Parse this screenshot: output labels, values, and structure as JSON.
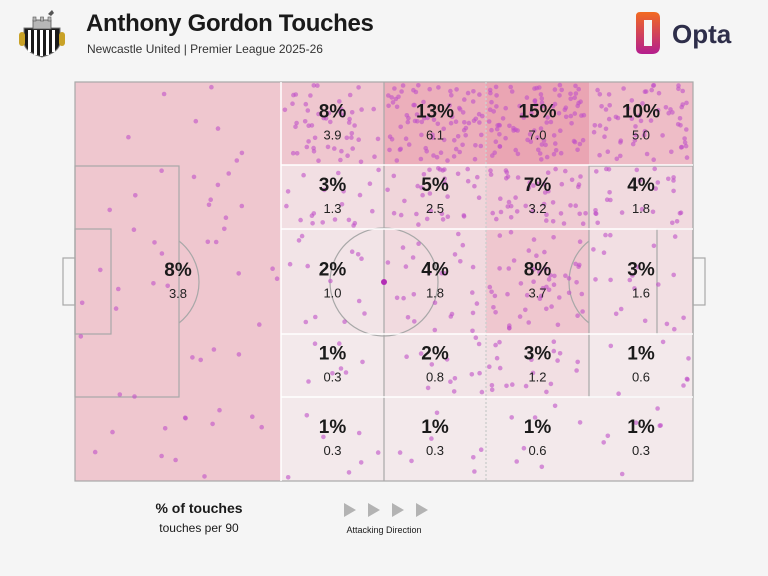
{
  "header": {
    "title": "Anthony Gordon Touches",
    "subtitle": "Newcastle United | Premier League 2025-26",
    "brand": "Opta"
  },
  "colors": {
    "zone_heat": "#e57f94",
    "touch_dot": "#c050c8",
    "pitch_line": "#a8a8a8",
    "brand_orange": "#f26a21",
    "brand_magenta": "#b41e8e",
    "brand_text": "#2e2e4a"
  },
  "legend": {
    "pct_label": "% of touches",
    "p90_label": "touches per 90",
    "direction_label": "Attacking Direction"
  },
  "chart_data": {
    "type": "heatmap",
    "title": "Anthony Gordon Touches",
    "description_units": [
      "% of touches",
      "touches per 90"
    ],
    "zones": [
      {
        "id": "own-third",
        "pct": "8%",
        "p90": "3.8",
        "share": 0.08
      },
      {
        "id": "c2-r1",
        "pct": "8%",
        "p90": "3.9",
        "share": 0.08
      },
      {
        "id": "c2-r2",
        "pct": "3%",
        "p90": "1.3",
        "share": 0.03
      },
      {
        "id": "c2-r3",
        "pct": "2%",
        "p90": "1.0",
        "share": 0.02
      },
      {
        "id": "c2-r4",
        "pct": "1%",
        "p90": "0.3",
        "share": 0.01
      },
      {
        "id": "c2-r5",
        "pct": "1%",
        "p90": "0.3",
        "share": 0.01
      },
      {
        "id": "c3-r1",
        "pct": "13%",
        "p90": "6.1",
        "share": 0.13
      },
      {
        "id": "c3-r2",
        "pct": "5%",
        "p90": "2.5",
        "share": 0.05
      },
      {
        "id": "c3-r3",
        "pct": "4%",
        "p90": "1.8",
        "share": 0.04
      },
      {
        "id": "c3-r4",
        "pct": "2%",
        "p90": "0.8",
        "share": 0.02
      },
      {
        "id": "c3-r5",
        "pct": "1%",
        "p90": "0.3",
        "share": 0.01
      },
      {
        "id": "c4-r1",
        "pct": "15%",
        "p90": "7.0",
        "share": 0.15
      },
      {
        "id": "c4-r2",
        "pct": "7%",
        "p90": "3.2",
        "share": 0.07
      },
      {
        "id": "c4-r3",
        "pct": "8%",
        "p90": "3.7",
        "share": 0.08
      },
      {
        "id": "c4-r4",
        "pct": "3%",
        "p90": "1.2",
        "share": 0.03
      },
      {
        "id": "c4-r5",
        "pct": "1%",
        "p90": "0.6",
        "share": 0.01
      },
      {
        "id": "c5-r1",
        "pct": "10%",
        "p90": "5.0",
        "share": 0.1
      },
      {
        "id": "c5-r2",
        "pct": "4%",
        "p90": "1.8",
        "share": 0.04
      },
      {
        "id": "c5-r3",
        "pct": "3%",
        "p90": "1.6",
        "share": 0.03
      },
      {
        "id": "c5-r4",
        "pct": "1%",
        "p90": "0.6",
        "share": 0.01
      },
      {
        "id": "c5-r5",
        "pct": "1%",
        "p90": "0.3",
        "share": 0.01
      }
    ]
  }
}
